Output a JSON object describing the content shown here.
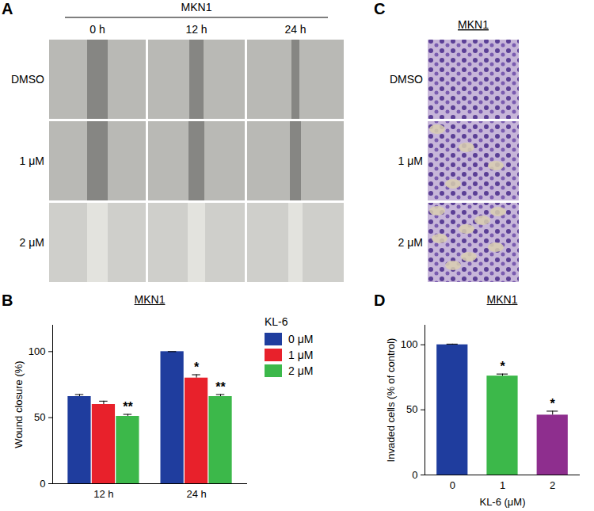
{
  "image_panels": [
    {
      "panel_label": "A",
      "title": "MKN1",
      "columns": [
        "0 h",
        "12 h",
        "24 h"
      ],
      "rows": [
        "DMSO",
        "1 μM",
        "2 μM"
      ]
    },
    {
      "panel_label": "C",
      "title": "MKN1",
      "rows": [
        "DMSO",
        "1 μM",
        "2 μM"
      ]
    }
  ],
  "chart_data": [
    {
      "panel_label": "B",
      "type": "bar",
      "title": "MKN1",
      "y_label": "Wound closure (%)",
      "categories": [
        "12 h",
        "24 h"
      ],
      "legend_title": "KL-6",
      "legend": "right",
      "series": [
        {
          "name": "0 μM",
          "color": "#1f3d9e",
          "values": [
            66,
            100
          ],
          "errors": [
            1.5,
            0
          ],
          "significance": [
            null,
            null
          ]
        },
        {
          "name": "1 μM",
          "color": "#e8212b",
          "values": [
            60,
            80
          ],
          "errors": [
            2.5,
            2.5
          ],
          "significance": [
            null,
            "*"
          ]
        },
        {
          "name": "2 μM",
          "color": "#3cb84a",
          "values": [
            51,
            66
          ],
          "errors": [
            1.5,
            1.5
          ],
          "significance": [
            "**",
            "**"
          ]
        }
      ],
      "ylim": [
        0,
        120
      ],
      "yticks": [
        0,
        50,
        100
      ]
    },
    {
      "panel_label": "D",
      "type": "bar",
      "title": "MKN1",
      "x_label": "KL-6 (μM)",
      "y_label": "Invaded cells (% of control)",
      "categories": [
        "0",
        "1",
        "2"
      ],
      "values": [
        100,
        76,
        46
      ],
      "errors": [
        0.5,
        1.5,
        3
      ],
      "significance": [
        null,
        "*",
        "*"
      ],
      "colors": [
        "#1f3d9e",
        "#3cb84a",
        "#8e2e8e"
      ],
      "ylim": [
        0,
        115
      ],
      "yticks": [
        0,
        50,
        100
      ]
    }
  ]
}
